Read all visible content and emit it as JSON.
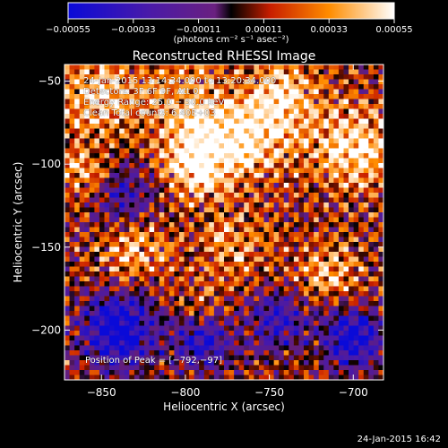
{
  "colorbar": {
    "ticks": [
      "-0.00055",
      "-0.00033",
      "-0.00011",
      "0.00011",
      "0.00033",
      "0.00055"
    ],
    "unit_label": "(photons cm⁻² s⁻¹ asec⁻²)",
    "colors": [
      "#0a0ad8",
      "#4a1aa8",
      "#7a2a88",
      "#000000",
      "#c81e00",
      "#ff8c00",
      "#ffffff"
    ]
  },
  "chart_data": {
    "type": "heatmap",
    "title": "Reconstructed RHESSI Image",
    "xlabel": "Heliocentric X (arcsec)",
    "ylabel": "Heliocentric Y (arcsec)",
    "xlim": [
      -872,
      -682
    ],
    "ylim": [
      -230,
      -40
    ],
    "xticks": [
      -850,
      -800,
      -750,
      -700
    ],
    "yticks": [
      -50,
      -100,
      -150,
      -200
    ],
    "xtick_labels": [
      "−850",
      "−800",
      "−750",
      "−700"
    ],
    "ytick_labels": [
      "−50",
      "−100",
      "−150",
      "−200"
    ],
    "value_range": [
      -0.00055,
      0.00055
    ],
    "peak": [
      -792,
      -97
    ]
  },
  "annotations": {
    "time_range": "24-Jan-2015 13:14:34.000 to 13:20:34.000",
    "detectors": "Detectors: 3F 6F 9F, Att 0",
    "energy": "Energy Range: 25.0 − 50.0 keV",
    "clean": "Clean     Total counts: 6.40E+03",
    "peak_label": "Position of Peak = [−792,−97]"
  },
  "footer": "24-Jan-2015 16:42"
}
